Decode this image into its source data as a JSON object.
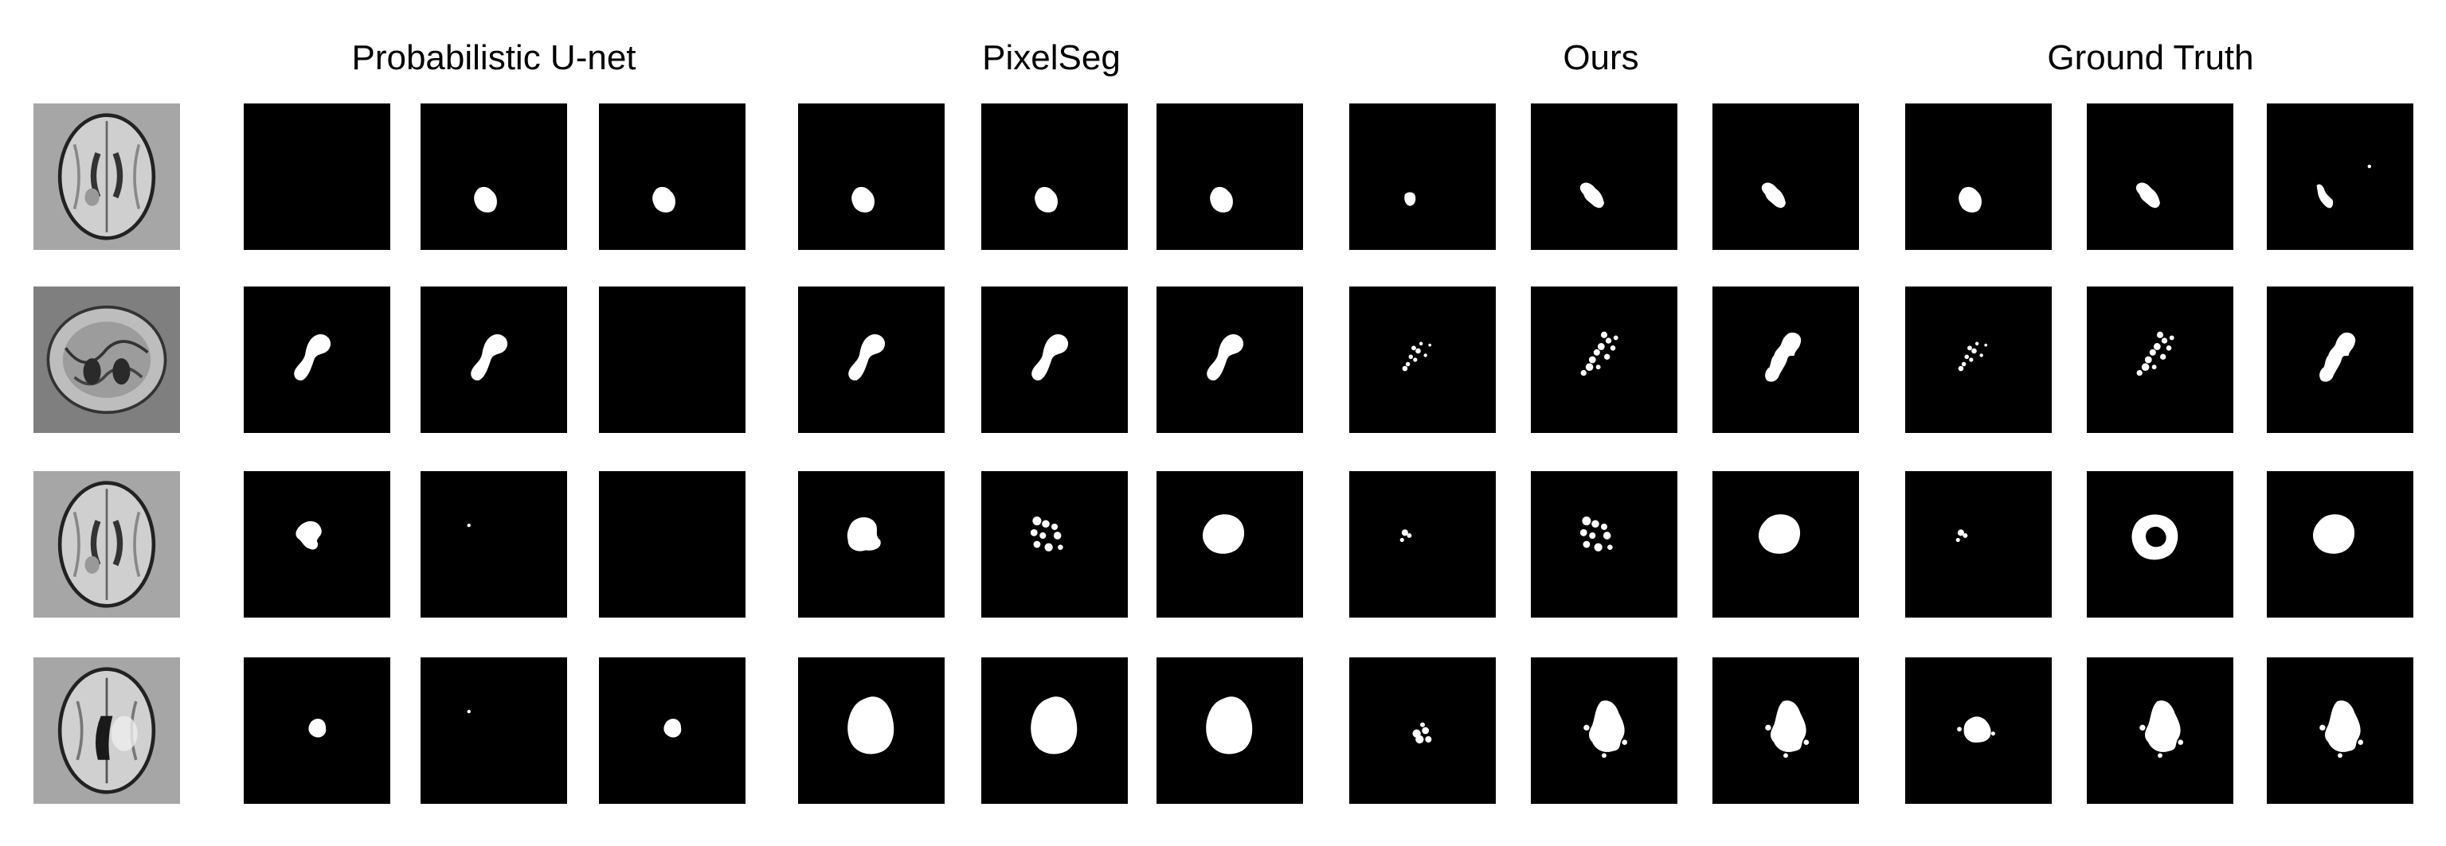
{
  "headers": [
    "Probabilistic U-net",
    "PixelSeg",
    "Ours",
    "Ground Truth"
  ],
  "colors": {
    "background": "#ffffff",
    "mask_bg": "#000000",
    "mask_fg": "#ffffff",
    "mri_bg_light": "#a6a6a6",
    "mri_bg_dark": "#808080"
  },
  "rows": [
    {
      "input": {
        "bg": "#a6a6a6",
        "shape": "oval-vertical"
      },
      "masks": [
        "empty",
        "blob-small-lower",
        "blob-small-lower",
        "blob-small-lower",
        "blob-small-lower",
        "blob-small-lower",
        "blob-tiny-lower",
        "blob-small-lower-irregular",
        "blob-small-lower-irregular",
        "blob-small-lower",
        "blob-small-lower-irregular",
        "blob-small-lower-speck"
      ]
    },
    {
      "input": {
        "bg": "#7f7f7f",
        "shape": "oval-horizontal"
      },
      "masks": [
        "blob-hook",
        "blob-hook",
        "empty",
        "blob-hook",
        "blob-hook",
        "blob-hook",
        "specks-scatter",
        "specks-hook",
        "blob-hook-ragged",
        "specks-scatter",
        "specks-hook",
        "blob-hook-ragged"
      ]
    },
    {
      "input": {
        "bg": "#a6a6a6",
        "shape": "oval-vertical"
      },
      "masks": [
        "blob-ring-small",
        "speck-dot",
        "empty",
        "blob-medium",
        "specks-cluster",
        "blob-medium-round",
        "speck-small",
        "specks-cluster",
        "blob-medium-round",
        "speck-small",
        "blob-ring",
        "blob-medium-round"
      ]
    },
    {
      "input": {
        "bg": "#a6a6a6",
        "shape": "oval-vertical-dark"
      },
      "masks": [
        "blob-tiny",
        "speck-dot",
        "blob-tiny",
        "blob-large",
        "blob-large",
        "blob-large",
        "specks-cluster-small",
        "blob-large-ragged",
        "blob-large-ragged",
        "blob-large-ragged-small",
        "blob-large-ragged",
        "blob-large-ragged"
      ]
    }
  ]
}
